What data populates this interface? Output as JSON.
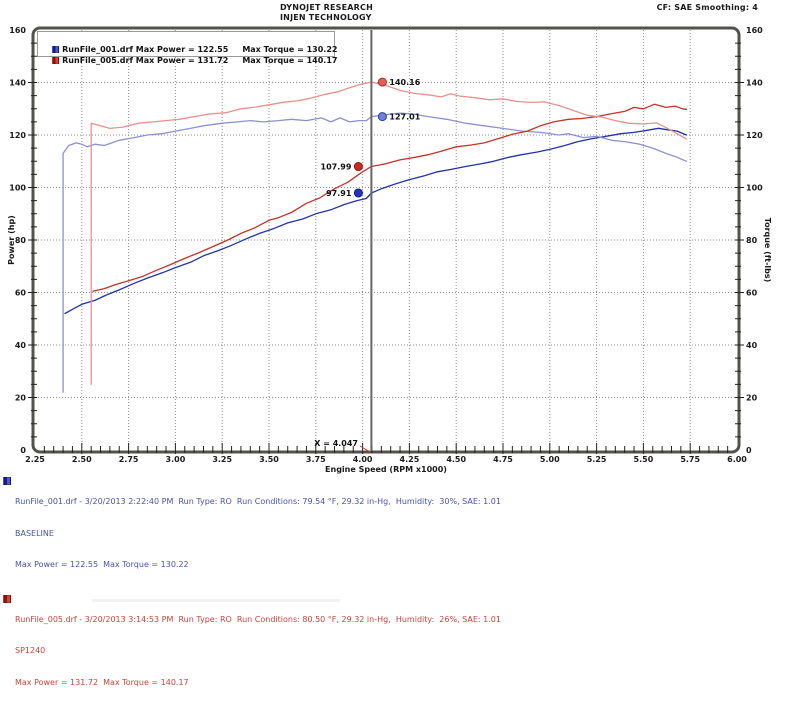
{
  "header": {
    "title_line1": "DYNOJET RESEARCH",
    "title_line2": "INJEN TECHNOLOGY",
    "correction_info": "CF: SAE  Smoothing: 4"
  },
  "legend": {
    "rows": [
      {
        "file_and_power": "RunFile_001.drf Max Power = 122.55",
        "torque": "Max Torque = 130.22",
        "marker_dark": "#1a1a8c",
        "marker_light": "#4a5ac8"
      },
      {
        "file_and_power": "RunFile_005.drf Max Power = 131.72",
        "torque": "Max Torque = 140.17",
        "marker_dark": "#8c1410",
        "marker_light": "#d84038"
      }
    ]
  },
  "axes": {
    "x": {
      "title": "Engine Speed (RPM x1000)",
      "min": 2.25,
      "max": 6.0,
      "major_step": 0.25,
      "minor_step": 0.05,
      "tick_labels": [
        "2.25",
        "2.50",
        "2.75",
        "3.00",
        "3.25",
        "3.50",
        "3.75",
        "4.00",
        "4.25",
        "4.50",
        "4.75",
        "5.00",
        "5.25",
        "5.50",
        "5.75",
        "6.00"
      ]
    },
    "y_left": {
      "title": "Power (hp)",
      "min": 0,
      "max": 160,
      "major_step": 20,
      "minor_step": 5,
      "tick_labels": [
        "0",
        "20",
        "40",
        "60",
        "80",
        "100",
        "120",
        "140",
        "160"
      ]
    },
    "y_right": {
      "title": "Torque (ft-lbs)",
      "min": 0,
      "max": 160,
      "major_step": 20,
      "minor_step": 5,
      "tick_labels": [
        "0",
        "20",
        "40",
        "60",
        "80",
        "100",
        "120",
        "140",
        "160"
      ]
    }
  },
  "cursor": {
    "x": 4.047,
    "label": "X = 4.047",
    "pointer_color": "#cc3328",
    "line_color": "#666666",
    "readouts": [
      {
        "value": "140.16",
        "y": 140.16,
        "dot_fill": "#e06058",
        "dot_stroke": "#b03028",
        "side": "right"
      },
      {
        "value": "127.01",
        "y": 127.01,
        "dot_fill": "#7282d8",
        "dot_stroke": "#2a3aa8",
        "side": "right"
      },
      {
        "value": "107.99",
        "y": 107.99,
        "dot_fill": "#cc2a20",
        "dot_stroke": "#8c1410",
        "side": "left"
      },
      {
        "value": "97.91",
        "y": 97.91,
        "dot_fill": "#2233c8",
        "dot_stroke": "#14147c",
        "side": "left"
      }
    ]
  },
  "chart_data": {
    "type": "line",
    "title": "",
    "xlabel": "Engine Speed (RPM x1000)",
    "ylabel_left": "Power (hp)",
    "ylabel_right": "Torque (ft-lbs)",
    "x_range": [
      2.25,
      6.0
    ],
    "y_range": [
      0,
      160
    ],
    "grid": "dotted",
    "legend_position": "top-left",
    "series": [
      {
        "name": "RunFile_001 Power (hp)",
        "axis": "left",
        "color": "#2233aa",
        "max": 122.55,
        "points": [
          [
            2.41,
            52
          ],
          [
            2.46,
            54
          ],
          [
            2.5,
            55.5
          ],
          [
            2.57,
            57
          ],
          [
            2.63,
            59
          ],
          [
            2.7,
            61
          ],
          [
            2.78,
            63.5
          ],
          [
            2.85,
            65.5
          ],
          [
            2.93,
            67.5
          ],
          [
            3.0,
            69.5
          ],
          [
            3.08,
            71.5
          ],
          [
            3.15,
            74
          ],
          [
            3.23,
            76
          ],
          [
            3.3,
            78
          ],
          [
            3.38,
            80.5
          ],
          [
            3.45,
            82.5
          ],
          [
            3.53,
            84.5
          ],
          [
            3.6,
            86.5
          ],
          [
            3.68,
            88
          ],
          [
            3.75,
            90
          ],
          [
            3.83,
            91.5
          ],
          [
            3.9,
            93.5
          ],
          [
            3.97,
            95
          ],
          [
            4.02,
            95.8
          ],
          [
            4.047,
            97.91
          ],
          [
            4.1,
            99.5
          ],
          [
            4.18,
            101.5
          ],
          [
            4.25,
            103
          ],
          [
            4.33,
            104.5
          ],
          [
            4.4,
            106
          ],
          [
            4.48,
            107
          ],
          [
            4.55,
            108
          ],
          [
            4.63,
            109
          ],
          [
            4.7,
            110
          ],
          [
            4.78,
            111.5
          ],
          [
            4.85,
            112.5
          ],
          [
            4.93,
            113.5
          ],
          [
            5.0,
            114.5
          ],
          [
            5.08,
            116
          ],
          [
            5.15,
            117.5
          ],
          [
            5.22,
            118.5
          ],
          [
            5.3,
            119.5
          ],
          [
            5.38,
            120.5
          ],
          [
            5.45,
            121
          ],
          [
            5.52,
            121.8
          ],
          [
            5.58,
            122.55
          ],
          [
            5.63,
            122
          ],
          [
            5.68,
            121.5
          ],
          [
            5.73,
            120
          ]
        ]
      },
      {
        "name": "RunFile_001 Torque (ft-lbs)",
        "axis": "right",
        "color": "#8a92d2",
        "max": 130.22,
        "points": [
          [
            2.4,
            22
          ],
          [
            2.4,
            113
          ],
          [
            2.43,
            116
          ],
          [
            2.47,
            117
          ],
          [
            2.5,
            116.5
          ],
          [
            2.53,
            115.5
          ],
          [
            2.57,
            116.5
          ],
          [
            2.62,
            116
          ],
          [
            2.7,
            118
          ],
          [
            2.78,
            119
          ],
          [
            2.85,
            120
          ],
          [
            2.93,
            120.5
          ],
          [
            3.0,
            121.5
          ],
          [
            3.08,
            122.5
          ],
          [
            3.15,
            123.5
          ],
          [
            3.25,
            124.5
          ],
          [
            3.33,
            125
          ],
          [
            3.4,
            125.5
          ],
          [
            3.47,
            125
          ],
          [
            3.55,
            125.5
          ],
          [
            3.62,
            126
          ],
          [
            3.7,
            125.5
          ],
          [
            3.78,
            126.5
          ],
          [
            3.83,
            125
          ],
          [
            3.88,
            126.5
          ],
          [
            3.93,
            125
          ],
          [
            3.98,
            125.5
          ],
          [
            4.02,
            125.5
          ],
          [
            4.047,
            127.01
          ],
          [
            4.1,
            127.5
          ],
          [
            4.15,
            128
          ],
          [
            4.2,
            128.3
          ],
          [
            4.27,
            128
          ],
          [
            4.35,
            127
          ],
          [
            4.45,
            126
          ],
          [
            4.55,
            124.5
          ],
          [
            4.65,
            123.5
          ],
          [
            4.75,
            122.5
          ],
          [
            4.85,
            121.5
          ],
          [
            4.95,
            121
          ],
          [
            5.05,
            120
          ],
          [
            5.1,
            120.5
          ],
          [
            5.18,
            119
          ],
          [
            5.25,
            119.5
          ],
          [
            5.33,
            118
          ],
          [
            5.4,
            117.5
          ],
          [
            5.48,
            116.5
          ],
          [
            5.55,
            115
          ],
          [
            5.62,
            113
          ],
          [
            5.68,
            111.5
          ],
          [
            5.73,
            110
          ]
        ]
      },
      {
        "name": "RunFile_005 Power (hp)",
        "axis": "left",
        "color": "#c23328",
        "max": 131.72,
        "points": [
          [
            2.56,
            60.5
          ],
          [
            2.62,
            61.5
          ],
          [
            2.68,
            63
          ],
          [
            2.75,
            64.5
          ],
          [
            2.82,
            66
          ],
          [
            2.9,
            68.5
          ],
          [
            2.97,
            70.5
          ],
          [
            3.05,
            73
          ],
          [
            3.12,
            75
          ],
          [
            3.2,
            77.5
          ],
          [
            3.28,
            80
          ],
          [
            3.35,
            82.5
          ],
          [
            3.42,
            84.5
          ],
          [
            3.5,
            87.5
          ],
          [
            3.55,
            88.5
          ],
          [
            3.62,
            90.5
          ],
          [
            3.7,
            94
          ],
          [
            3.77,
            96
          ],
          [
            3.85,
            99.5
          ],
          [
            3.92,
            102
          ],
          [
            4.0,
            106
          ],
          [
            4.047,
            107.99
          ],
          [
            4.12,
            109
          ],
          [
            4.2,
            110.5
          ],
          [
            4.28,
            111.5
          ],
          [
            4.35,
            112.5
          ],
          [
            4.42,
            113.8
          ],
          [
            4.5,
            115.5
          ],
          [
            4.58,
            116.2
          ],
          [
            4.65,
            117
          ],
          [
            4.72,
            118.5
          ],
          [
            4.8,
            120.3
          ],
          [
            4.88,
            121.5
          ],
          [
            4.95,
            123.5
          ],
          [
            5.02,
            125
          ],
          [
            5.1,
            126
          ],
          [
            5.17,
            126.3
          ],
          [
            5.25,
            127
          ],
          [
            5.32,
            128
          ],
          [
            5.4,
            129
          ],
          [
            5.45,
            130.5
          ],
          [
            5.5,
            130
          ],
          [
            5.56,
            131.72
          ],
          [
            5.62,
            130.5
          ],
          [
            5.67,
            131
          ],
          [
            5.71,
            130
          ],
          [
            5.73,
            129.8
          ]
        ]
      },
      {
        "name": "RunFile_005 Torque (ft-lbs)",
        "axis": "right",
        "color": "#e8918c",
        "max": 140.17,
        "points": [
          [
            2.55,
            25
          ],
          [
            2.55,
            124.5
          ],
          [
            2.6,
            123.5
          ],
          [
            2.65,
            122.5
          ],
          [
            2.72,
            123
          ],
          [
            2.8,
            124.5
          ],
          [
            2.88,
            125
          ],
          [
            2.95,
            125.5
          ],
          [
            3.02,
            126
          ],
          [
            3.1,
            127
          ],
          [
            3.18,
            128
          ],
          [
            3.27,
            128.5
          ],
          [
            3.35,
            130
          ],
          [
            3.42,
            130.5
          ],
          [
            3.5,
            131.5
          ],
          [
            3.58,
            132.5
          ],
          [
            3.65,
            133
          ],
          [
            3.72,
            134
          ],
          [
            3.8,
            135.5
          ],
          [
            3.87,
            136.5
          ],
          [
            3.93,
            138
          ],
          [
            4.0,
            139.5
          ],
          [
            4.047,
            140.16
          ],
          [
            4.12,
            139
          ],
          [
            4.2,
            137
          ],
          [
            4.28,
            135.8
          ],
          [
            4.35,
            135.3
          ],
          [
            4.42,
            134.5
          ],
          [
            4.47,
            135.7
          ],
          [
            4.52,
            134.8
          ],
          [
            4.6,
            134.2
          ],
          [
            4.68,
            133.4
          ],
          [
            4.75,
            133.8
          ],
          [
            4.82,
            132.8
          ],
          [
            4.9,
            132.4
          ],
          [
            4.97,
            132.6
          ],
          [
            5.05,
            131.2
          ],
          [
            5.12,
            129.5
          ],
          [
            5.2,
            127.5
          ],
          [
            5.28,
            126.8
          ],
          [
            5.35,
            125.5
          ],
          [
            5.42,
            124.5
          ],
          [
            5.5,
            124.2
          ],
          [
            5.57,
            124.6
          ],
          [
            5.63,
            122.5
          ],
          [
            5.68,
            120.5
          ],
          [
            5.73,
            118.5
          ]
        ]
      }
    ]
  },
  "footer": {
    "runs": [
      {
        "color": "#4653a8",
        "marker_dark": "#1a1a8c",
        "marker_light": "#4a5ac8",
        "line1": "RunFile_001.drf - 3/20/2013 2:22:40 PM  Run Type: RO  Run Conditions: 79.54 °F, 29.32 in-Hg,  Humidity:  30%, SAE: 1.01",
        "line2": "BASELINE",
        "line3": "Max Power = 122.55  Max Torque = 130.22"
      },
      {
        "color": "#c4453c",
        "marker_dark": "#8c1410",
        "marker_light": "#d84038",
        "line1": "RunFile_005.drf - 3/20/2013 3:14:53 PM  Run Type: RO  Run Conditions: 80.50 °F, 29.32 in-Hg,  Humidity:  26%, SAE: 1.01",
        "line2": "SP1240",
        "line3": "Max Power = 131.72  Max Torque = 140.17"
      }
    ]
  }
}
